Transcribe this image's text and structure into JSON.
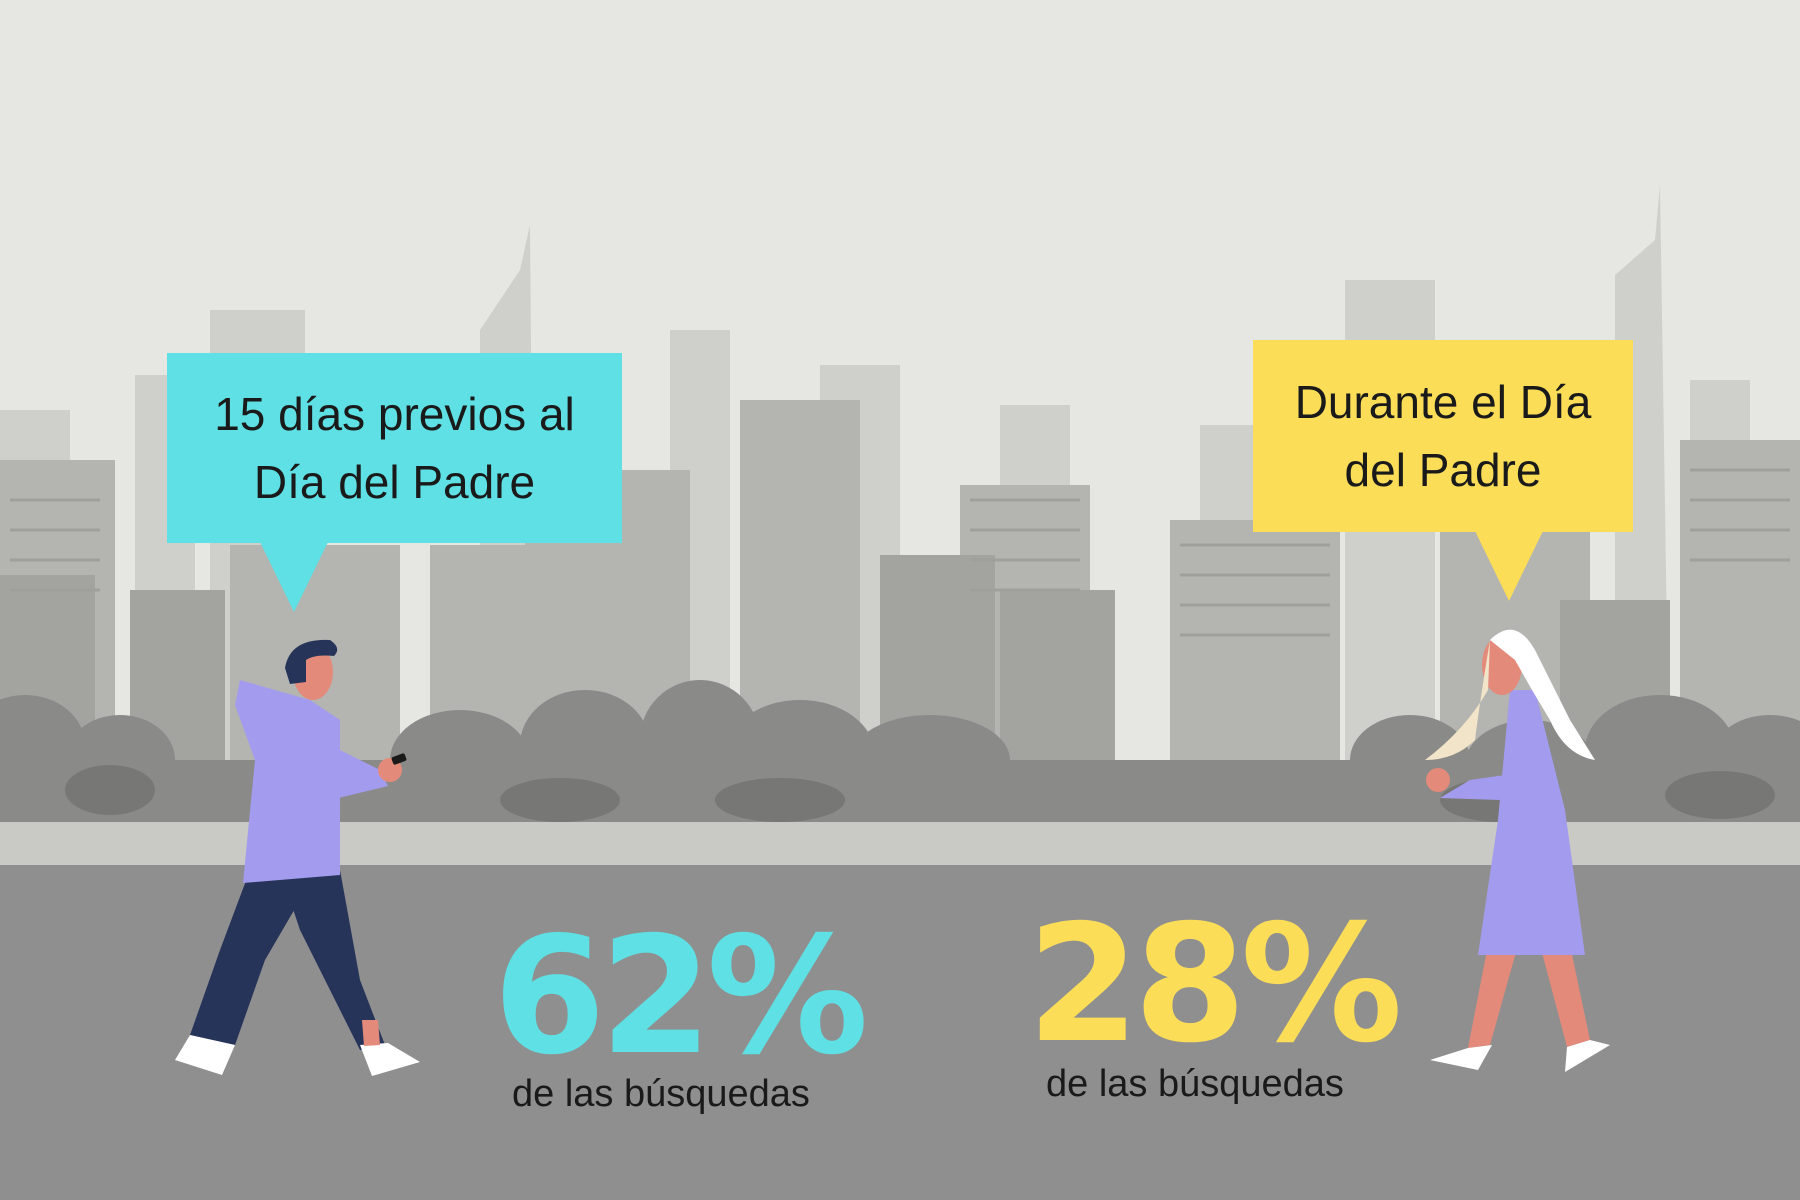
{
  "colors": {
    "sky": "#e6e6e3",
    "buildings_far": "#cfcfcc",
    "buildings_mid": "#b4b4b1",
    "buildings_near": "#9d9d9b",
    "trees": "#8a8a88",
    "path": "#c9c9c6",
    "ground": "#8f8f8f",
    "cyan_accent": "#5ee0e4",
    "yellow_accent": "#fbdd58",
    "hoodie_lavender": "#a39cee",
    "pants_navy": "#27345a",
    "skin": "#e48a7a",
    "text_dark": "#1a1a1a"
  },
  "left_panel": {
    "bubble_text": "15 días previos al\nDía del Padre",
    "stat_value": "62%",
    "stat_caption": "de las búsquedas"
  },
  "right_panel": {
    "bubble_text": "Durante el Día\ndel Padre",
    "stat_value": "28%",
    "stat_caption": "de las búsquedas"
  },
  "icons": {
    "man": "man-walking-with-phone-icon",
    "woman": "woman-walking-with-phone-icon"
  }
}
